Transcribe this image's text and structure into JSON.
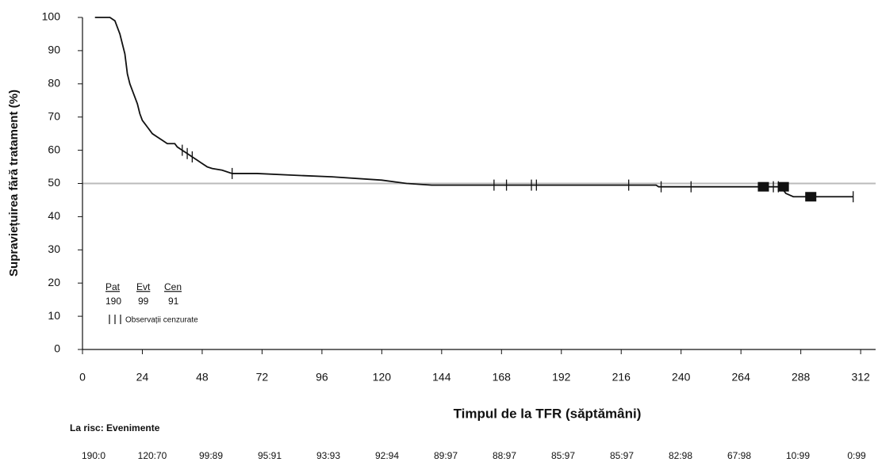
{
  "chart_data": {
    "type": "line",
    "y_label": "Supraviețuirea fără tratament (%)",
    "x_label": "Timpul de la TFR (săptămâni)",
    "xlim": [
      0,
      318
    ],
    "ylim": [
      0,
      100
    ],
    "xticks": [
      0,
      24,
      48,
      72,
      96,
      120,
      144,
      168,
      192,
      216,
      240,
      264,
      288,
      312
    ],
    "yticks": [
      0,
      10,
      20,
      30,
      40,
      50,
      60,
      70,
      80,
      90,
      100
    ],
    "reference_line": 50,
    "series": [
      {
        "name": "Supraviețuire",
        "color": "#111111",
        "x": [
          5,
          11,
          13,
          14,
          15,
          16,
          17,
          17.5,
          18,
          19,
          20,
          21,
          22,
          23,
          24,
          25,
          26,
          27,
          28,
          30,
          32,
          34,
          37,
          38,
          40,
          42,
          44,
          46,
          48,
          50,
          52,
          56,
          60,
          70,
          84,
          100,
          120,
          130,
          140,
          230,
          231,
          280,
          282,
          285,
          309
        ],
        "values": [
          100,
          100,
          99,
          97,
          95,
          92,
          89,
          86,
          83,
          80,
          78,
          76,
          74,
          71,
          69,
          68,
          67,
          66,
          65,
          64,
          63,
          62,
          62,
          61,
          60,
          59,
          58,
          57,
          56,
          55,
          54.5,
          54,
          53,
          53,
          52.5,
          52,
          51,
          50,
          49.5,
          49.5,
          49,
          49,
          47,
          46,
          46
        ]
      }
    ],
    "censored": {
      "x": [
        40,
        42,
        44,
        60,
        165,
        170,
        180,
        182,
        219,
        232,
        244,
        277,
        279,
        309
      ],
      "y": [
        60,
        59,
        58,
        53,
        49.5,
        49.5,
        49.5,
        49.5,
        49.5,
        49,
        49,
        49,
        49,
        46
      ]
    },
    "censored_clusters": {
      "x": [
        273,
        281,
        292
      ],
      "y": [
        49,
        49,
        46
      ]
    },
    "legend_table": {
      "headers": [
        "Pat",
        "Evt",
        "Cen"
      ],
      "values": [
        190,
        99,
        91
      ],
      "censor_label": "Observații cenzurate"
    },
    "at_risk_title": "La risc: Evenimente",
    "at_risk": [
      "190:0",
      "120:70",
      "99:89",
      "95:91",
      "93:93",
      "92:94",
      "89:97",
      "88:97",
      "85:97",
      "85:97",
      "82:98",
      "67:98",
      "10:99",
      "0:99"
    ]
  }
}
